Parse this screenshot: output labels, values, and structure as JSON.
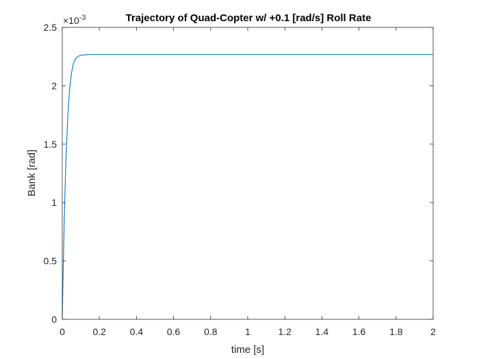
{
  "chart_data": {
    "type": "line",
    "title": "Trajectory of Quad-Copter w/ +0.1 [rad/s] Roll Rate",
    "xlabel": "time [s]",
    "ylabel": "Bank [rad]",
    "xlim": [
      0,
      2
    ],
    "ylim": [
      0,
      2.5
    ],
    "y_exponent": {
      "prefix": "×10",
      "power": "-3"
    },
    "xticks": [
      "0",
      "0.2",
      "0.4",
      "0.6",
      "0.8",
      "1",
      "1.2",
      "1.4",
      "1.6",
      "1.8",
      "2"
    ],
    "yticks": [
      "0",
      "0.5",
      "1",
      "1.5",
      "2",
      "2.5"
    ],
    "grid": false,
    "line_color": "#0072BD",
    "series": [
      {
        "x": [
          0,
          0.005,
          0.01,
          0.015,
          0.02,
          0.03,
          0.04,
          0.05,
          0.06,
          0.07,
          0.08,
          0.09,
          0.1,
          0.12,
          0.14,
          0.16,
          0.18,
          0.2,
          0.25,
          0.3,
          0.4,
          0.6,
          0.8,
          1.0,
          1.2,
          1.4,
          1.6,
          1.8,
          2.0
        ],
        "y": [
          0,
          0.43,
          0.8,
          1.11,
          1.37,
          1.75,
          1.98,
          2.11,
          2.19,
          2.226,
          2.245,
          2.255,
          2.261,
          2.265,
          2.267,
          2.268,
          2.268,
          2.268,
          2.268,
          2.268,
          2.268,
          2.268,
          2.268,
          2.268,
          2.268,
          2.268,
          2.268,
          2.268,
          2.268
        ]
      }
    ]
  }
}
